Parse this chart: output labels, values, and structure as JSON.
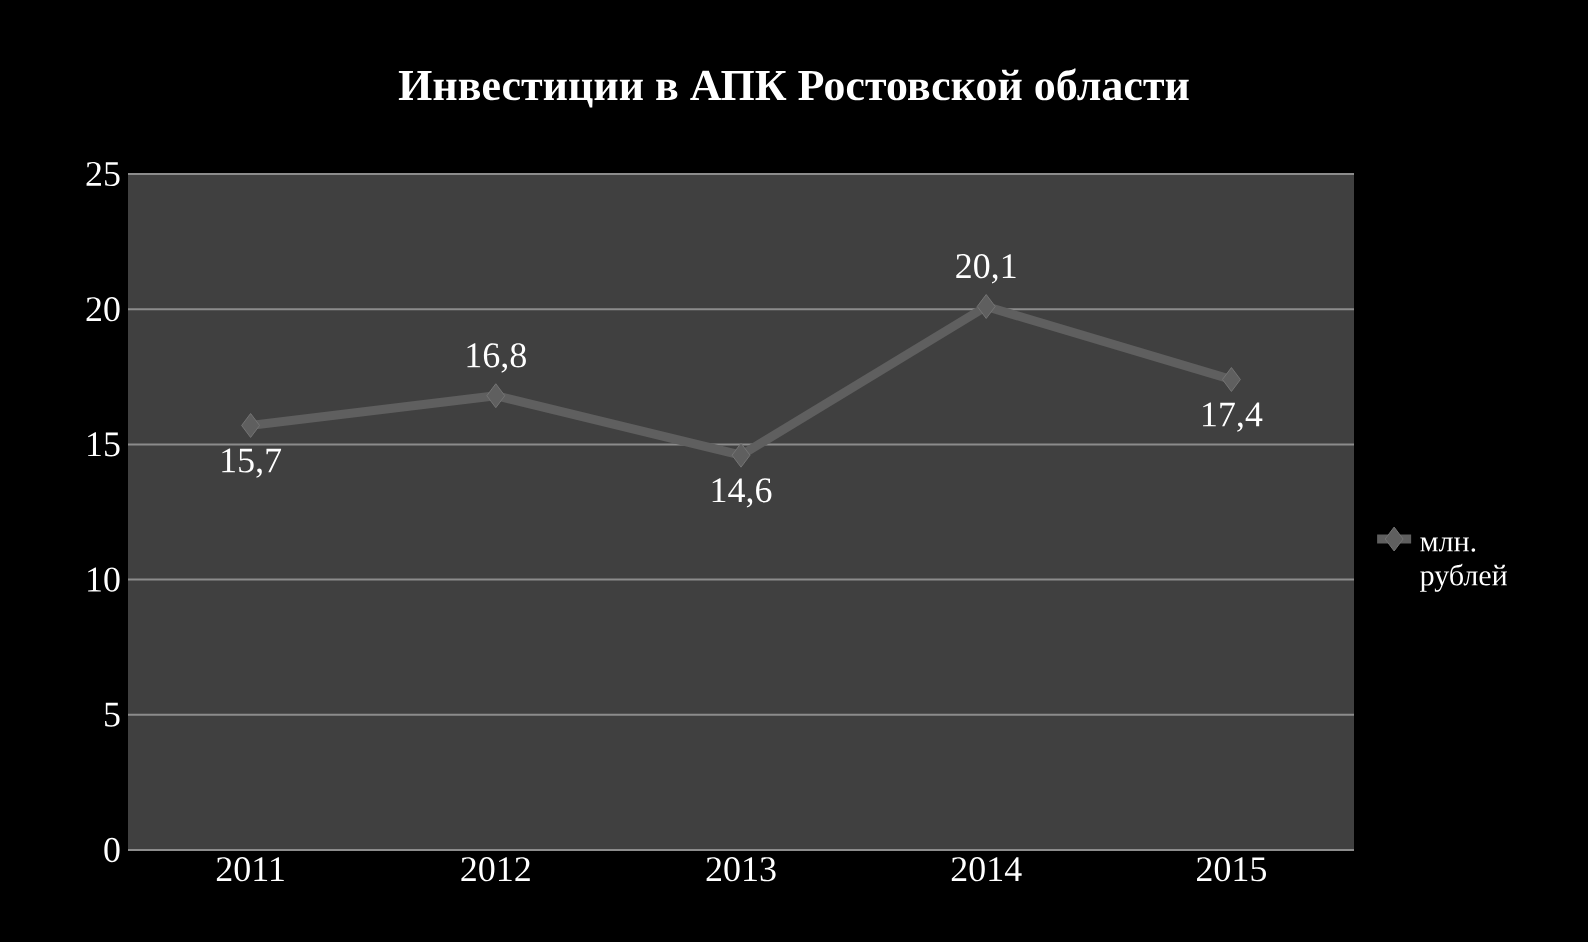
{
  "chart_data": {
    "type": "line",
    "title": "Инвестиции в АПК Ростовской области",
    "categories": [
      "2011",
      "2012",
      "2013",
      "2014",
      "2015"
    ],
    "series": [
      {
        "name": "млн. рублей",
        "color": "#5f5f5f",
        "values": [
          15.7,
          16.8,
          14.6,
          20.1,
          17.4
        ],
        "value_labels": [
          "15,7",
          "16,8",
          "14,6",
          "20,1",
          "17,4"
        ]
      }
    ],
    "ylim": [
      0,
      25
    ],
    "yticks": [
      0,
      5,
      10,
      15,
      20,
      25
    ],
    "grid": "y",
    "legend": "right",
    "marker": "diamond",
    "line_style": "solid"
  }
}
